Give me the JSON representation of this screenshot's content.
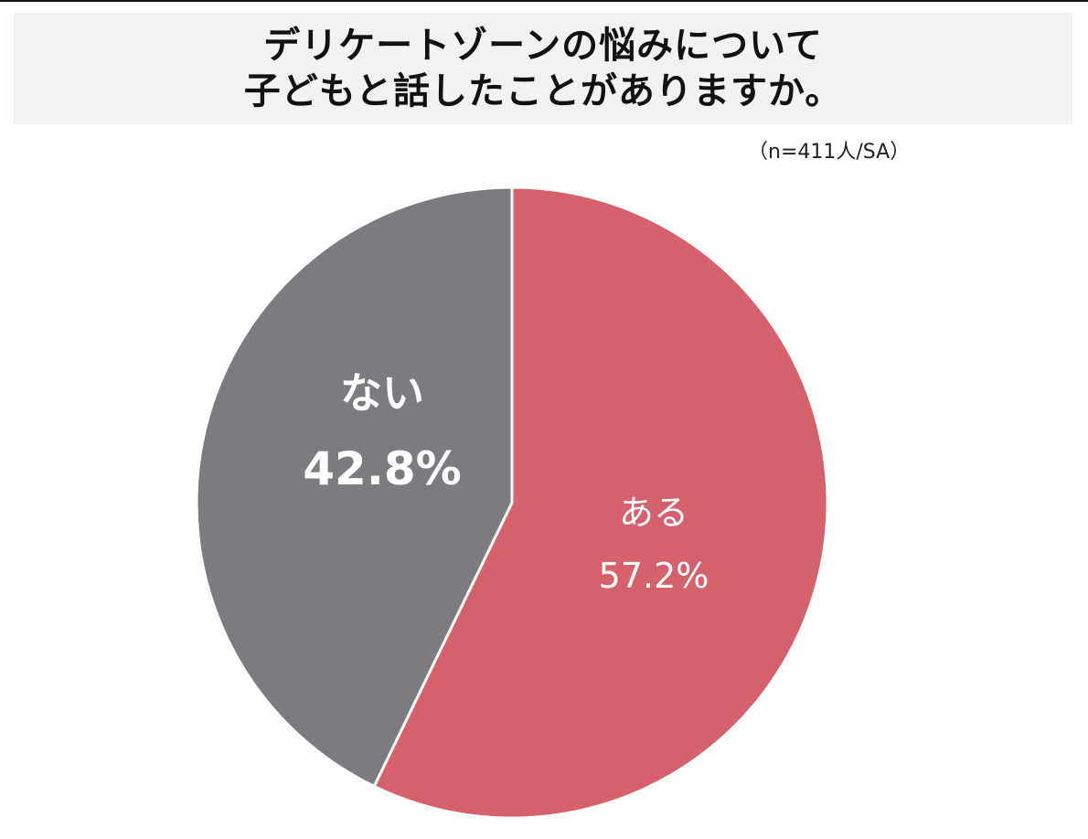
{
  "title": {
    "line1": "デリケートゾーンの悩みについて",
    "line2": "子どもと話したことがありますか。"
  },
  "sample_note": "（n=411人/SA）",
  "colors": {
    "aru": "#d4616b",
    "nai": "#7d7b7f",
    "title_bg": "#f2f1f4",
    "divider": "#ffffff"
  },
  "labels": {
    "nai": {
      "name": "ない",
      "value": "42.8%"
    },
    "aru": {
      "name": "ある",
      "value": "57.2%"
    }
  },
  "chart_data": {
    "type": "pie",
    "title": "デリケートゾーンの悩みについて子どもと話したことがありますか。",
    "subtitle": "（n=411人/SA）",
    "categories": [
      "ある",
      "ない"
    ],
    "values": [
      57.2,
      42.8
    ],
    "unit": "%",
    "start_angle": "12 o'clock",
    "direction": "clockwise (ある first)",
    "colors": [
      "#d4616b",
      "#7d7b7f"
    ],
    "legend": "none (labels inside slices)"
  }
}
